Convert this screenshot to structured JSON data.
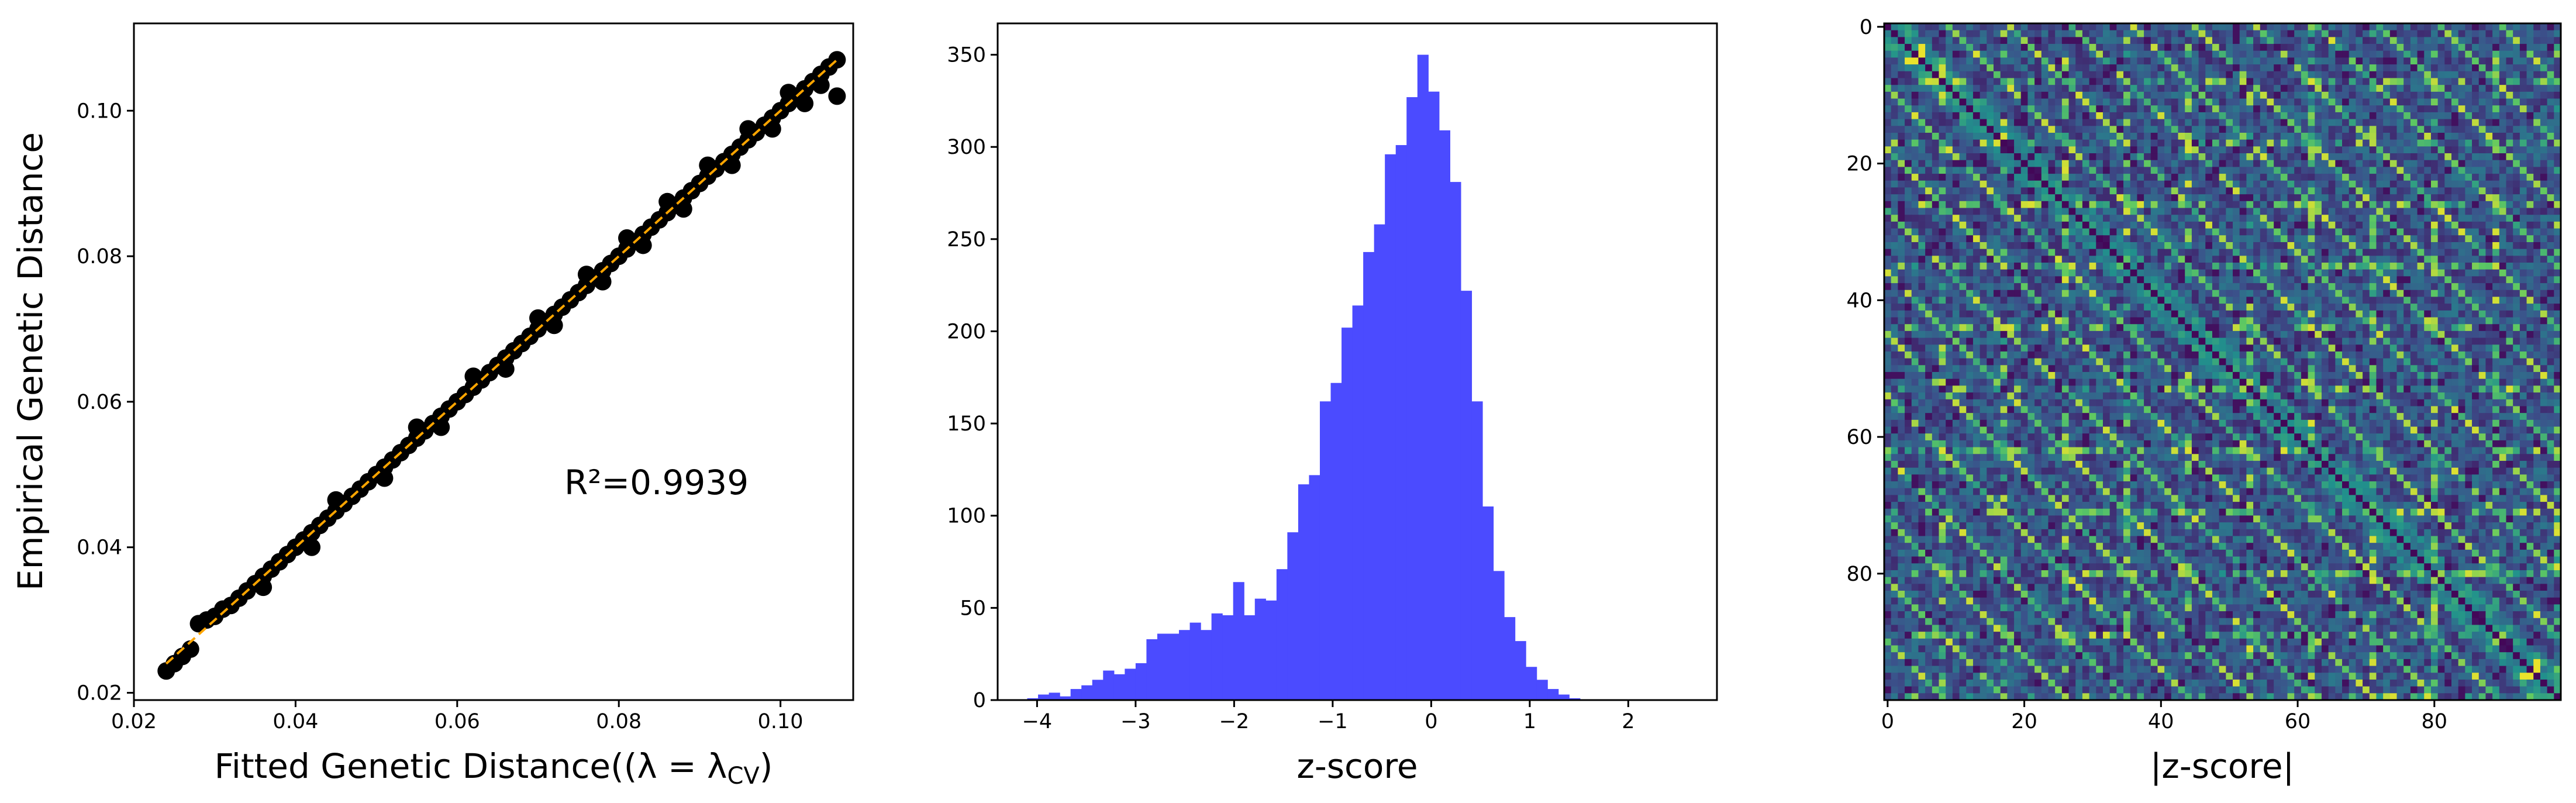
{
  "chart_data": [
    {
      "type": "scatter",
      "xlabel": "Fitted Genetic Distance((λ = λ",
      "xlabel_sub": "CV",
      "xlabel_end": ")",
      "ylabel": "Empirical Genetic Distance",
      "annotation": "R²=0.9939",
      "xlim": [
        0.02,
        0.109
      ],
      "ylim": [
        0.019,
        0.112
      ],
      "xticks": [
        0.02,
        0.04,
        0.06,
        0.08,
        0.1
      ],
      "xtick_labels": [
        "0.02",
        "0.04",
        "0.06",
        "0.08",
        "0.10"
      ],
      "yticks": [
        0.02,
        0.04,
        0.06,
        0.08,
        0.1
      ],
      "ytick_labels": [
        "0.02",
        "0.04",
        "0.06",
        "0.08",
        "0.10"
      ],
      "fit_line": {
        "x": [
          0.024,
          0.107
        ],
        "y": [
          0.024,
          0.107
        ],
        "color": "#ffa500",
        "style": "dashed"
      },
      "point_color": "#000000",
      "points": [
        [
          0.024,
          0.023
        ],
        [
          0.025,
          0.024
        ],
        [
          0.026,
          0.025
        ],
        [
          0.027,
          0.026
        ],
        [
          0.028,
          0.0295
        ],
        [
          0.029,
          0.03
        ],
        [
          0.03,
          0.0305
        ],
        [
          0.031,
          0.0315
        ],
        [
          0.032,
          0.032
        ],
        [
          0.033,
          0.033
        ],
        [
          0.034,
          0.034
        ],
        [
          0.035,
          0.035
        ],
        [
          0.036,
          0.036
        ],
        [
          0.037,
          0.037
        ],
        [
          0.038,
          0.038
        ],
        [
          0.039,
          0.039
        ],
        [
          0.04,
          0.04
        ],
        [
          0.041,
          0.041
        ],
        [
          0.042,
          0.042
        ],
        [
          0.043,
          0.043
        ],
        [
          0.044,
          0.044
        ],
        [
          0.045,
          0.045
        ],
        [
          0.046,
          0.046
        ],
        [
          0.047,
          0.047
        ],
        [
          0.048,
          0.048
        ],
        [
          0.049,
          0.049
        ],
        [
          0.05,
          0.05
        ],
        [
          0.051,
          0.051
        ],
        [
          0.052,
          0.052
        ],
        [
          0.053,
          0.053
        ],
        [
          0.054,
          0.054
        ],
        [
          0.055,
          0.055
        ],
        [
          0.056,
          0.056
        ],
        [
          0.057,
          0.057
        ],
        [
          0.058,
          0.058
        ],
        [
          0.059,
          0.059
        ],
        [
          0.06,
          0.06
        ],
        [
          0.061,
          0.061
        ],
        [
          0.062,
          0.062
        ],
        [
          0.063,
          0.063
        ],
        [
          0.064,
          0.064
        ],
        [
          0.065,
          0.065
        ],
        [
          0.066,
          0.066
        ],
        [
          0.067,
          0.067
        ],
        [
          0.068,
          0.068
        ],
        [
          0.069,
          0.069
        ],
        [
          0.07,
          0.07
        ],
        [
          0.071,
          0.071
        ],
        [
          0.072,
          0.072
        ],
        [
          0.073,
          0.073
        ],
        [
          0.074,
          0.074
        ],
        [
          0.075,
          0.075
        ],
        [
          0.076,
          0.076
        ],
        [
          0.077,
          0.077
        ],
        [
          0.078,
          0.078
        ],
        [
          0.079,
          0.079
        ],
        [
          0.08,
          0.08
        ],
        [
          0.081,
          0.081
        ],
        [
          0.082,
          0.082
        ],
        [
          0.083,
          0.083
        ],
        [
          0.084,
          0.084
        ],
        [
          0.085,
          0.085
        ],
        [
          0.086,
          0.086
        ],
        [
          0.087,
          0.087
        ],
        [
          0.088,
          0.088
        ],
        [
          0.089,
          0.089
        ],
        [
          0.09,
          0.09
        ],
        [
          0.091,
          0.091
        ],
        [
          0.092,
          0.092
        ],
        [
          0.093,
          0.093
        ],
        [
          0.094,
          0.094
        ],
        [
          0.095,
          0.095
        ],
        [
          0.096,
          0.096
        ],
        [
          0.097,
          0.097
        ],
        [
          0.098,
          0.098
        ],
        [
          0.099,
          0.099
        ],
        [
          0.1,
          0.1
        ],
        [
          0.101,
          0.101
        ],
        [
          0.102,
          0.102
        ],
        [
          0.103,
          0.103
        ],
        [
          0.104,
          0.104
        ],
        [
          0.105,
          0.105
        ],
        [
          0.106,
          0.106
        ],
        [
          0.107,
          0.107
        ],
        [
          0.107,
          0.102
        ],
        [
          0.036,
          0.0345
        ],
        [
          0.042,
          0.04
        ],
        [
          0.051,
          0.0495
        ],
        [
          0.058,
          0.0565
        ],
        [
          0.066,
          0.0645
        ],
        [
          0.072,
          0.0705
        ],
        [
          0.078,
          0.0765
        ],
        [
          0.083,
          0.0815
        ],
        [
          0.088,
          0.0865
        ],
        [
          0.094,
          0.0925
        ],
        [
          0.099,
          0.0975
        ],
        [
          0.045,
          0.0465
        ],
        [
          0.055,
          0.0565
        ],
        [
          0.062,
          0.0635
        ],
        [
          0.07,
          0.0715
        ],
        [
          0.076,
          0.0775
        ],
        [
          0.081,
          0.0825
        ],
        [
          0.086,
          0.0875
        ],
        [
          0.091,
          0.0925
        ],
        [
          0.096,
          0.0975
        ],
        [
          0.101,
          0.1025
        ],
        [
          0.103,
          0.101
        ],
        [
          0.105,
          0.1035
        ]
      ]
    },
    {
      "type": "histogram",
      "xlabel": "z-score",
      "ylabel": "",
      "xlim": [
        -4.4,
        2.9
      ],
      "ylim": [
        0,
        367
      ],
      "xticks": [
        -4,
        -3,
        -2,
        -1,
        0,
        1,
        2
      ],
      "xtick_labels": [
        "−4",
        "−3",
        "−2",
        "−1",
        "0",
        "1",
        "2"
      ],
      "yticks": [
        0,
        50,
        100,
        150,
        200,
        250,
        300,
        350
      ],
      "ytick_labels": [
        "0",
        "50",
        "100",
        "150",
        "200",
        "250",
        "300",
        "350"
      ],
      "bar_color": "#4b4bff",
      "bin_start": -4.1,
      "bin_width": 0.11,
      "counts": [
        1,
        3,
        4,
        2,
        6,
        8,
        11,
        16,
        14,
        17,
        20,
        33,
        36,
        36,
        38,
        42,
        38,
        47,
        46,
        64,
        46,
        55,
        54,
        71,
        91,
        117,
        122,
        162,
        172,
        202,
        214,
        243,
        258,
        296,
        301,
        327,
        350,
        330,
        309,
        281,
        222,
        162,
        105,
        70,
        45,
        32,
        18,
        11,
        6,
        3,
        1
      ]
    },
    {
      "type": "heatmap",
      "xlabel": "|z-score|",
      "xlim": [
        0,
        99
      ],
      "ylim": [
        0,
        99
      ],
      "xticks": [
        0,
        20,
        40,
        60,
        80
      ],
      "xtick_labels": [
        "0",
        "20",
        "40",
        "60",
        "80"
      ],
      "yticks": [
        0,
        20,
        40,
        60,
        80
      ],
      "ytick_labels": [
        "0",
        "20",
        "40",
        "60",
        "80"
      ],
      "size": 99,
      "colormap": "viridis",
      "colors": [
        "#440154",
        "#3b528b",
        "#21918c",
        "#5ec962",
        "#fde725"
      ]
    }
  ]
}
